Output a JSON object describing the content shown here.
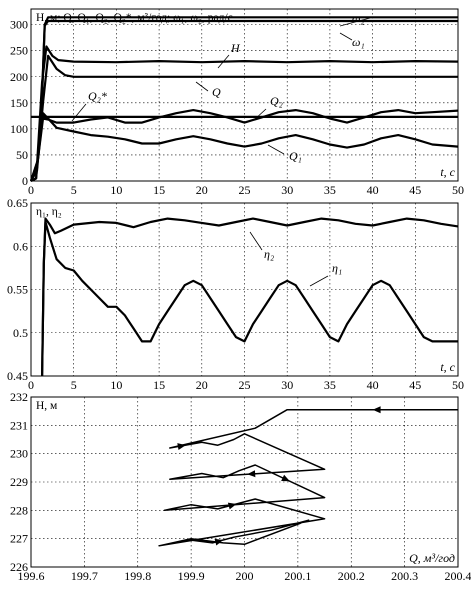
{
  "chart_data": [
    {
      "type": "line",
      "ylabel": "H, м; Q, Q₁, Q₂, Q₂*, м³/год; ω₁, ω₂, рад/с",
      "xlabel": "t, c",
      "xlim": [
        0,
        50
      ],
      "ylim": [
        0,
        330
      ],
      "xticks": [
        0,
        5,
        10,
        15,
        20,
        25,
        30,
        35,
        40,
        45,
        50
      ],
      "yticks": [
        0,
        50,
        100,
        150,
        200,
        250,
        300
      ],
      "grid": true,
      "series": [
        {
          "name": "ω₂",
          "x": [
            0,
            0.6,
            1.2,
            1.6,
            2.0,
            50
          ],
          "y": [
            0,
            5,
            120,
            300,
            314,
            314
          ]
        },
        {
          "name": "ω₁",
          "x": [
            0,
            0.6,
            1.2,
            1.6,
            2.0,
            50
          ],
          "y": [
            0,
            5,
            120,
            298,
            307,
            307
          ]
        },
        {
          "name": "H",
          "x": [
            0,
            0.7,
            1.3,
            1.8,
            2.5,
            3.2,
            5,
            10,
            15,
            20,
            25,
            30,
            35,
            40,
            45,
            50
          ],
          "y": [
            0,
            30,
            190,
            258,
            240,
            232,
            229,
            228,
            230,
            228,
            230,
            228,
            230,
            228,
            230,
            229
          ]
        },
        {
          "name": "Q",
          "x": [
            0,
            0.7,
            1.4,
            2.0,
            3.0,
            4.0,
            5,
            50
          ],
          "y": [
            0,
            20,
            150,
            240,
            215,
            203,
            200,
            200
          ]
        },
        {
          "name": "Q₂*",
          "x": [
            0,
            50
          ],
          "y": [
            123,
            123
          ]
        },
        {
          "name": "Q₂",
          "x": [
            0,
            0.8,
            1.4,
            2.0,
            3,
            5,
            7,
            9,
            11,
            13,
            15,
            17,
            19,
            21,
            23,
            25,
            27,
            29,
            31,
            33,
            35,
            37,
            39,
            41,
            43,
            45,
            47,
            50
          ],
          "y": [
            0,
            40,
            120,
            118,
            112,
            112,
            118,
            122,
            112,
            112,
            122,
            130,
            136,
            130,
            122,
            112,
            122,
            132,
            136,
            130,
            120,
            112,
            122,
            132,
            136,
            130,
            132,
            135
          ]
        },
        {
          "name": "Q₁",
          "x": [
            0,
            0.8,
            1.4,
            2.0,
            3,
            5,
            7,
            9,
            11,
            13,
            15,
            17,
            19,
            21,
            23,
            25,
            27,
            29,
            31,
            33,
            35,
            37,
            39,
            41,
            43,
            45,
            47,
            50
          ],
          "y": [
            0,
            40,
            130,
            120,
            102,
            95,
            88,
            85,
            80,
            72,
            72,
            80,
            86,
            80,
            72,
            66,
            72,
            82,
            88,
            80,
            70,
            64,
            70,
            82,
            88,
            80,
            70,
            66
          ]
        }
      ],
      "annotations": [
        "ω₂",
        "ω₁",
        "H",
        "Q",
        "Q₂*",
        "Q₂",
        "Q₁"
      ]
    },
    {
      "type": "line",
      "ylabel": "η₁, η₂",
      "xlabel": "t, c",
      "xlim": [
        0,
        50
      ],
      "ylim": [
        0.45,
        0.65
      ],
      "xticks": [
        0,
        5,
        10,
        15,
        20,
        25,
        30,
        35,
        40,
        45,
        50
      ],
      "yticks": [
        0.45,
        0.5,
        0.55,
        0.6,
        0.65
      ],
      "grid": true,
      "series": [
        {
          "name": "η₂",
          "x": [
            1.3,
            1.5,
            1.7,
            2.2,
            2.8,
            3.5,
            5,
            8,
            10,
            12,
            14,
            16,
            18,
            20,
            22,
            24,
            26,
            28,
            30,
            32,
            34,
            36,
            38,
            40,
            42,
            44,
            46,
            48,
            50
          ],
          "y": [
            0.45,
            0.58,
            0.632,
            0.625,
            0.615,
            0.618,
            0.625,
            0.628,
            0.627,
            0.622,
            0.628,
            0.632,
            0.63,
            0.627,
            0.624,
            0.628,
            0.632,
            0.628,
            0.624,
            0.628,
            0.632,
            0.63,
            0.626,
            0.624,
            0.628,
            0.632,
            0.63,
            0.626,
            0.623
          ]
        },
        {
          "name": "η₁",
          "x": [
            1.3,
            1.5,
            1.7,
            2.2,
            3,
            4,
            5,
            6,
            7,
            8,
            9,
            10,
            11,
            12,
            13,
            14,
            15,
            16,
            17,
            18,
            19,
            20,
            21,
            22,
            23,
            24,
            25,
            26,
            27,
            28,
            29,
            30,
            31,
            32,
            33,
            34,
            35,
            36,
            37,
            38,
            39,
            40,
            41,
            42,
            43,
            44,
            45,
            46,
            47,
            48,
            49,
            50
          ],
          "y": [
            0.45,
            0.58,
            0.628,
            0.61,
            0.585,
            0.575,
            0.572,
            0.56,
            0.55,
            0.54,
            0.53,
            0.53,
            0.52,
            0.505,
            0.49,
            0.49,
            0.51,
            0.525,
            0.54,
            0.555,
            0.56,
            0.555,
            0.54,
            0.525,
            0.51,
            0.495,
            0.49,
            0.51,
            0.525,
            0.54,
            0.555,
            0.56,
            0.555,
            0.54,
            0.525,
            0.51,
            0.495,
            0.49,
            0.51,
            0.525,
            0.54,
            0.555,
            0.56,
            0.555,
            0.54,
            0.525,
            0.51,
            0.495,
            0.49,
            0.49,
            0.49,
            0.49
          ]
        }
      ],
      "annotations": [
        "η₂",
        "η₁"
      ]
    },
    {
      "type": "line",
      "ylabel": "H, м",
      "xlabel": "Q, м³/год",
      "xlim": [
        199.6,
        200.4
      ],
      "ylim": [
        226,
        232
      ],
      "xticks": [
        "199.6",
        "199.7",
        "199.8",
        "199.9",
        "200",
        "200.1",
        "200.2",
        "200.3",
        "200.4"
      ],
      "yticks": [
        "226",
        "227",
        "228",
        "229",
        "230",
        "231",
        "232"
      ],
      "grid": true,
      "series": [
        {
          "name": "",
          "x": [
            200.4,
            200.08,
            200.02,
            199.86,
            199.92,
            199.95,
            199.98,
            200.0,
            200.15,
            199.86,
            199.92,
            199.96,
            199.99,
            200.02,
            200.15,
            199.85,
            199.9,
            199.95,
            200.02,
            200.15,
            199.84,
            199.9,
            199.94,
            199.98,
            200.05,
            200.12,
            200.0,
            199.96,
            199.9,
            199.84
          ],
          "y": [
            231.55,
            231.55,
            230.9,
            230.2,
            230.4,
            230.3,
            230.5,
            230.7,
            229.45,
            229.1,
            229.3,
            229.15,
            229.4,
            229.6,
            228.45,
            228.0,
            228.2,
            228.05,
            228.4,
            227.7,
            226.75,
            226.95,
            226.85,
            227.05,
            227.3,
            227.65,
            226.8,
            226.85,
            227.0,
            226.75
          ]
        }
      ]
    }
  ]
}
